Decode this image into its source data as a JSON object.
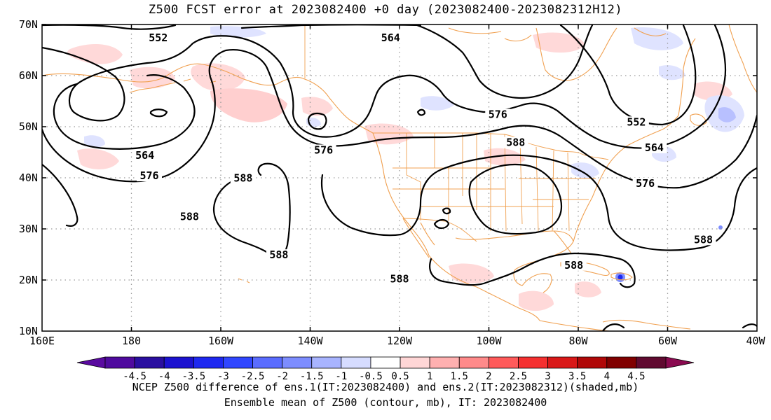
{
  "title": "Z500 FCST error at 2023082400 +0 day (2023082400-2023082312H12)",
  "lat_ticks": [
    "70N",
    "60N",
    "50N",
    "40N",
    "30N",
    "20N",
    "10N"
  ],
  "lon_ticks": [
    "160E",
    "180",
    "160W",
    "140W",
    "120W",
    "100W",
    "80W",
    "60W",
    "40W"
  ],
  "contours": [
    {
      "label": "552",
      "value": 552
    },
    {
      "label": "564",
      "value": 564
    },
    {
      "label": "576",
      "value": 576
    },
    {
      "label": "588",
      "value": 588
    }
  ],
  "contour_labels": [
    {
      "text": "552",
      "lon": -174,
      "lat": 67
    },
    {
      "text": "564",
      "lon": -122,
      "lat": 67
    },
    {
      "text": "564",
      "lon": -177,
      "lat": 44
    },
    {
      "text": "576",
      "lon": -176,
      "lat": 40
    },
    {
      "text": "588",
      "lon": -155,
      "lat": 39.5
    },
    {
      "text": "576",
      "lon": -137,
      "lat": 45
    },
    {
      "text": "588",
      "lon": -167,
      "lat": 32
    },
    {
      "text": "588",
      "lon": -147,
      "lat": 24.5
    },
    {
      "text": "576",
      "lon": -98,
      "lat": 52
    },
    {
      "text": "588",
      "lon": -94,
      "lat": 46.5
    },
    {
      "text": "552",
      "lon": -67,
      "lat": 50.5
    },
    {
      "text": "564",
      "lon": -63,
      "lat": 45.5
    },
    {
      "text": "576",
      "lon": -65,
      "lat": 38.5
    },
    {
      "text": "588",
      "lon": -52,
      "lat": 27.5
    },
    {
      "text": "588",
      "lon": -81,
      "lat": 22.5
    },
    {
      "text": "588",
      "lon": -120,
      "lat": 19.8
    }
  ],
  "colorbar": {
    "labels": [
      "-4.5",
      "-4",
      "-3.5",
      "-3",
      "-2.5",
      "-2",
      "-1.5",
      "-1",
      "-0.5",
      "0.5",
      "1",
      "1.5",
      "2",
      "2.5",
      "3",
      "3.5",
      "4",
      "4.5"
    ],
    "colors": [
      "#4f0a9e",
      "#2a0fa0",
      "#1c12d0",
      "#1e28f0",
      "#3046ff",
      "#5a6cff",
      "#7d8dff",
      "#a8b4ff",
      "#d6dcff",
      "#ffffff",
      "#ffd6d6",
      "#ffb0b0",
      "#ff8a8a",
      "#ff5a5a",
      "#f53030",
      "#d91818",
      "#b00808",
      "#800000",
      "#600a30"
    ],
    "end_left": "#5a0aa0",
    "end_right": "#8a0a50"
  },
  "caption1": "NCEP Z500 difference of ens.1(IT:2023082400) and ens.2(IT:2023082312)(shaded,mb)",
  "caption2": "Ensemble mean of Z500 (contour, mb), IT: 2023082400"
}
